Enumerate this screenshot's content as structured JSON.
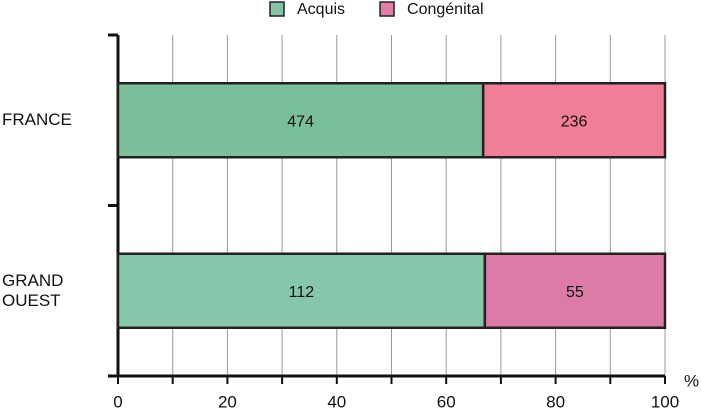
{
  "chart_data": {
    "type": "bar",
    "orientation": "horizontal",
    "stacking": "percent",
    "categories": [
      "FRANCE",
      "GRAND OUEST"
    ],
    "series": [
      {
        "name": "Acquis",
        "color": "#84c3a5",
        "point_colors": [
          "#7bbf9a",
          "#86c6aa"
        ],
        "values": [
          474,
          112
        ]
      },
      {
        "name": "Congénital",
        "color": "#e07fa6",
        "point_colors": [
          "#ef7e96",
          "#dc7ba8"
        ],
        "values": [
          236,
          55
        ]
      }
    ],
    "xlabel": "%",
    "xlim": [
      0,
      100
    ],
    "xticks": [
      0,
      20,
      40,
      60,
      80,
      100
    ],
    "xminorticks": [
      10,
      30,
      50,
      70,
      90
    ],
    "grid": true,
    "legend": "top"
  }
}
